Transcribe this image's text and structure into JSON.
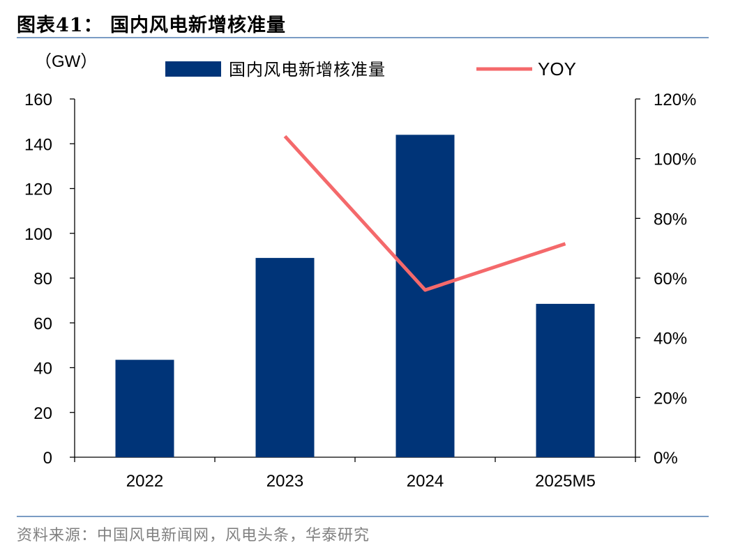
{
  "figure": {
    "title": "图表41：  国内风电新增核准量",
    "source": "资料来源：中国风电新闻网，风电头条，华泰研究"
  },
  "chart_data": {
    "type": "bar",
    "categories": [
      "2022",
      "2023",
      "2024",
      "2025M5"
    ],
    "series": [
      {
        "name": "国内风电新增核准量",
        "type": "bar",
        "axis": "left",
        "unit": "GW",
        "values": [
          43.5,
          89,
          144,
          68.5
        ]
      },
      {
        "name": "YOY",
        "type": "line",
        "axis": "right",
        "unit": "%",
        "values": [
          null,
          107.5,
          56,
          71.5
        ]
      }
    ],
    "y_left": {
      "label": "（GW）",
      "min": 0,
      "max": 160,
      "ticks": [
        "0",
        "20",
        "40",
        "60",
        "80",
        "100",
        "120",
        "140",
        "160"
      ]
    },
    "y_right": {
      "min": 0,
      "max": 120,
      "ticks": [
        "0%",
        "20%",
        "40%",
        "60%",
        "80%",
        "100%",
        "120%"
      ]
    },
    "colors": {
      "bar": "#003478",
      "line": "#f4696b"
    },
    "grid": false,
    "legend_position": "top"
  }
}
